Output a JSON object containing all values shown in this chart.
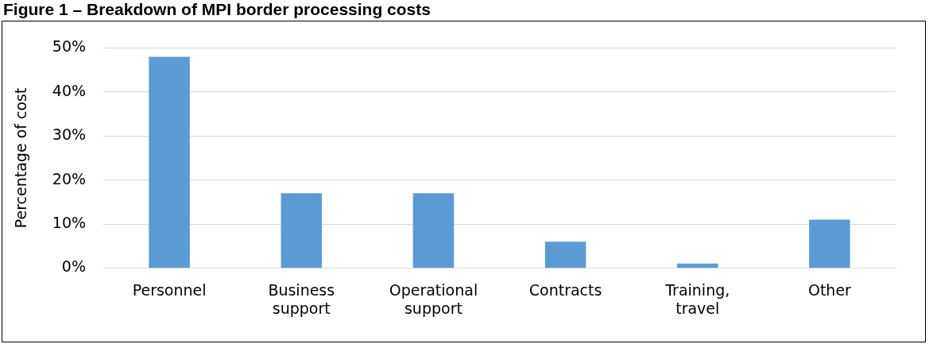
{
  "chart_data": {
    "type": "bar",
    "title": "Figure 1 – Breakdown of MPI border processing costs",
    "ylabel": "Percentage of cost",
    "categories": [
      "Personnel",
      "Business support",
      "Operational support",
      "Contracts",
      "Training, travel",
      "Other"
    ],
    "values": [
      48,
      17,
      17,
      6,
      1,
      11
    ],
    "color": "#5b9bd5",
    "ylim": [
      0,
      50
    ],
    "yticks": [
      {
        "value": 0,
        "label": "0%"
      },
      {
        "value": 10,
        "label": "10%"
      },
      {
        "value": 20,
        "label": "20%"
      },
      {
        "value": 30,
        "label": "30%"
      },
      {
        "value": 40,
        "label": "40%"
      },
      {
        "value": 50,
        "label": "50%"
      }
    ],
    "grid": "y",
    "legend": false
  }
}
